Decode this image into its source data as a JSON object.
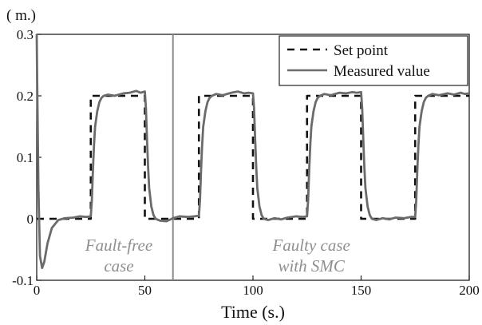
{
  "chart_data": {
    "type": "line",
    "title": "",
    "xlabel": "Time (s.)",
    "ylabel": "( m.)",
    "xlim": [
      0,
      200
    ],
    "ylim": [
      -0.1,
      0.3
    ],
    "x_ticks": [
      0,
      50,
      100,
      150,
      200
    ],
    "y_ticks": [
      -0.1,
      0,
      0.1,
      0.2,
      0.3
    ],
    "x_tick_labels": [
      "0",
      "50",
      "100",
      "150",
      "200"
    ],
    "y_tick_labels": [
      "-0.1",
      "0",
      "0.1",
      "0.2",
      "0.3"
    ],
    "grid": false,
    "legend": {
      "placement": "top-right",
      "entries": [
        "Set point",
        "Measured value"
      ]
    },
    "fault_line_x": 63,
    "annotations": [
      {
        "lines": [
          "Fault-free",
          "case"
        ],
        "x": 38,
        "y": -0.06
      },
      {
        "lines": [
          "Faulty case",
          "with SMC"
        ],
        "x": 127,
        "y": -0.06
      }
    ],
    "series": [
      {
        "name": "Set point",
        "style": "dashed",
        "color": "#111111",
        "x": [
          0,
          25,
          25,
          50,
          50,
          75,
          75,
          100,
          100,
          125,
          125,
          150,
          150,
          175,
          175,
          200
        ],
        "y": [
          0,
          0,
          0.2,
          0.2,
          0,
          0,
          0.2,
          0.2,
          0,
          0,
          0.2,
          0.2,
          0,
          0,
          0.2,
          0.2
        ]
      },
      {
        "name": "Measured value",
        "style": "solid",
        "color": "#6b6b6b",
        "x": [
          0,
          0.3,
          0.8,
          1.5,
          2.5,
          3.5,
          5,
          7,
          10,
          13,
          17,
          20,
          23,
          25,
          25.5,
          26,
          26.5,
          27,
          28,
          29,
          30,
          31,
          33,
          36,
          40,
          43,
          46,
          48,
          50,
          50.5,
          51,
          51.5,
          52,
          53,
          54,
          55,
          57,
          60,
          63,
          66,
          70,
          73,
          75,
          75.5,
          76,
          76.5,
          77,
          78,
          79,
          80,
          81,
          83,
          86,
          90,
          93,
          96,
          98,
          100,
          100.5,
          101,
          101.5,
          102,
          103,
          104,
          105,
          107,
          110,
          113,
          116,
          120,
          123,
          125,
          125.5,
          126,
          126.5,
          127,
          128,
          129,
          130,
          131,
          133,
          136,
          140,
          143,
          146,
          148,
          150,
          150.5,
          151,
          151.5,
          152,
          153,
          154,
          155,
          157,
          160,
          163,
          166,
          170,
          173,
          175,
          175.5,
          176,
          176.5,
          177,
          178,
          179,
          180,
          181,
          183,
          186,
          190,
          193,
          196,
          198,
          200
        ],
        "y": [
          0.3,
          0.2,
          0.05,
          -0.06,
          -0.08,
          -0.07,
          -0.04,
          -0.015,
          -0.002,
          0.001,
          0.002,
          0.004,
          0.003,
          0.004,
          0.03,
          0.08,
          0.12,
          0.15,
          0.175,
          0.19,
          0.197,
          0.2,
          0.202,
          0.2,
          0.204,
          0.205,
          0.208,
          0.205,
          0.207,
          0.18,
          0.13,
          0.085,
          0.05,
          0.02,
          0.006,
          0.0,
          -0.003,
          -0.004,
          0.001,
          0.004,
          0.003,
          0.004,
          0.005,
          0.03,
          0.08,
          0.12,
          0.15,
          0.175,
          0.19,
          0.197,
          0.2,
          0.203,
          0.201,
          0.205,
          0.207,
          0.204,
          0.205,
          0.204,
          0.18,
          0.13,
          0.085,
          0.05,
          0.02,
          0.006,
          0.0,
          -0.002,
          0.001,
          -0.001,
          0.002,
          0.004,
          0.003,
          0.004,
          0.03,
          0.08,
          0.12,
          0.15,
          0.175,
          0.19,
          0.197,
          0.2,
          0.203,
          0.201,
          0.205,
          0.204,
          0.206,
          0.205,
          0.206,
          0.18,
          0.13,
          0.085,
          0.05,
          0.02,
          0.006,
          0.0,
          -0.002,
          0.001,
          -0.001,
          0.002,
          0.001,
          0.003,
          0.003,
          0.03,
          0.08,
          0.12,
          0.15,
          0.175,
          0.19,
          0.197,
          0.2,
          0.203,
          0.201,
          0.204,
          0.202,
          0.205,
          0.203,
          0.204
        ]
      }
    ]
  }
}
